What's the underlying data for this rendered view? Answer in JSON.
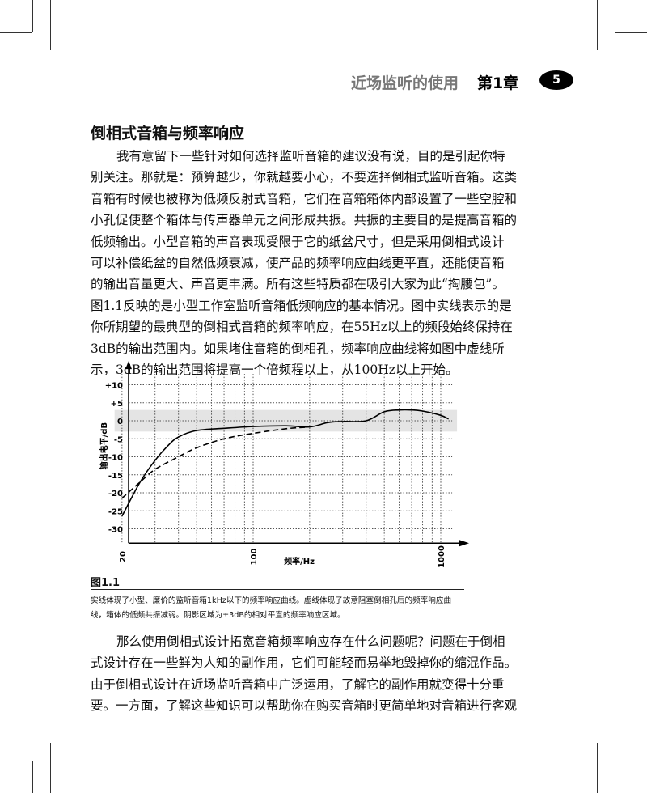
{
  "header": {
    "chapter_title": "近场监听的使用",
    "chapter_number": "第1章",
    "page_number": "5"
  },
  "section_title": "倒相式音箱与频率响应",
  "paragraph1": [
    "我有意留下一些针对如何选择监听音箱的建议没有说，目的是引起你特",
    "别关注。那就是：预算越少，你就越要小心，不要选择倒相式监听音箱。这类",
    "音箱有时候也被称为低频反射式音箱，它们在音箱箱体内部设置了一些空腔和",
    "小孔促使整个箱体与传声器单元之间形成共振。共振的主要目的是提高音箱的",
    "低频输出。小型音箱的声音表现受限于它的纸盆尺寸，但是采用倒相式设计",
    "可以补偿纸盆的自然低频衰减，使产品的频率响应曲线更平直，还能使音箱",
    "的输出音量更大、声音更丰满。所有这些特质都在吸引大家为此“掏腰包”。",
    "图1.1反映的是小型工作室监听音箱低频响应的基本情况。图中实线表示的是",
    "你所期望的最典型的倒相式音箱的频率响应，在55Hz以上的频段始终保持在",
    "3dB的输出范围内。如果堵住音箱的倒相孔，频率响应曲线将如图中虚线所",
    "示，3dB的输出范围将提高一个倍频程以上，从100Hz以上开始。"
  ],
  "figure": {
    "label": "图1.1",
    "caption": "实线体现了小型、廉价的监听音箱1kHz以下的频率响应曲线。虚线体现了故意阻塞倒相孔后的频率响应曲线，箱体的低频共振减弱。阴影区域为±3dB的相对平直的频率响应区域。"
  },
  "chart_data": {
    "type": "line",
    "xlabel": "频率/Hz",
    "ylabel": "输出电平/dB",
    "x_scale": "log",
    "xlim": [
      19,
      1150
    ],
    "ylim": [
      -34,
      13
    ],
    "x_ticks": [
      20,
      100,
      1000
    ],
    "x_tick_labels": [
      "20",
      "100",
      "1000"
    ],
    "x_grid": [
      20,
      30,
      40,
      50,
      60,
      70,
      80,
      90,
      100,
      200,
      300,
      400,
      500,
      600,
      700,
      800,
      900,
      1000
    ],
    "y_ticks": [
      10,
      5,
      0,
      -5,
      -10,
      -15,
      -20,
      -25,
      -30
    ],
    "y_tick_labels": [
      "+10",
      "+5",
      "0",
      "-5",
      "-10",
      "-15",
      "-20",
      "-25",
      "-30"
    ],
    "grid": true,
    "shaded_band": [
      -3,
      3
    ],
    "shaded_color": "#e4e4e4",
    "series": [
      {
        "style": "solid",
        "x": [
          20,
          25,
          30,
          35,
          40,
          50,
          70,
          100,
          150,
          200,
          250,
          300,
          400,
          500,
          600,
          700,
          800,
          1000,
          1100
        ],
        "y": [
          -26.5,
          -17,
          -11,
          -7,
          -4.5,
          -2.7,
          -2.1,
          -1.6,
          -1.4,
          -1.7,
          -0.5,
          -0.2,
          0,
          2.5,
          3,
          3,
          2.7,
          1.5,
          0.5
        ]
      },
      {
        "style": "dashed",
        "x": [
          20,
          25,
          30,
          40,
          50,
          70,
          100,
          150,
          190
        ],
        "y": [
          -21.5,
          -17,
          -13.5,
          -10,
          -7.5,
          -5,
          -3.5,
          -2.2,
          -1.8
        ]
      }
    ]
  },
  "paragraph2": [
    "那么使用倒相式设计拓宽音箱频率响应存在什么问题呢？问题在于倒相",
    "式设计存在一些鲜为人知的副作用，它们可能轻而易举地毁掉你的缩混作品。",
    "由于倒相式设计在近场监听音箱中广泛运用，了解它的副作用就变得十分重",
    "要。一方面，了解这些知识可以帮助你在购买音箱时更简单地对音箱进行客观"
  ]
}
